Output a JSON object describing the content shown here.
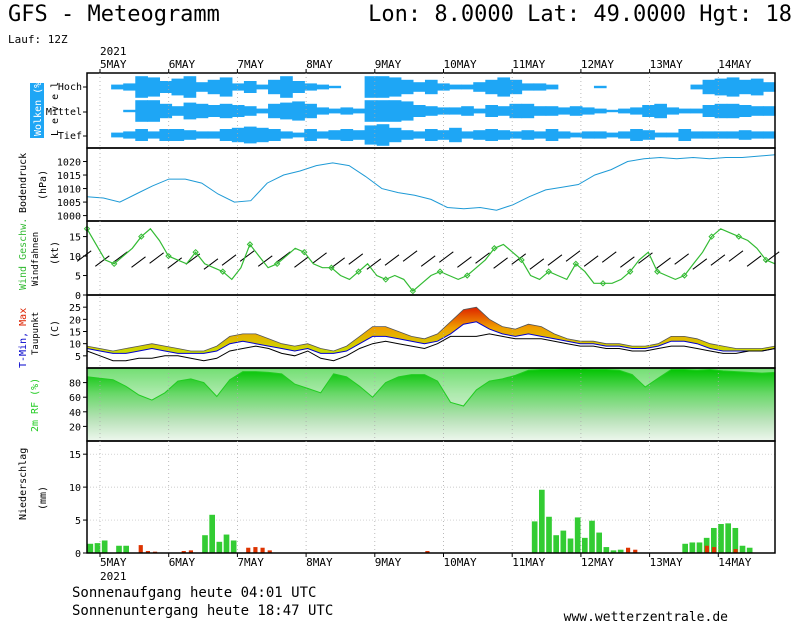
{
  "header": {
    "title": "GFS - Meteogramm",
    "coords": "Lon: 8.0000  Lat: 49.0000  Hgt: 18",
    "run": "Lauf: 12Z"
  },
  "footer": {
    "sunrise": "Sonnenaufgang heute 04:01 UTC",
    "sunset": "Sonnenuntergang heute 18:47 UTC",
    "site": "www.wetterzentrale.de"
  },
  "colors": {
    "cloud": "#1ea6f5",
    "pressure": "#1e9ad6",
    "wind_speed": "#33bb33",
    "tmin": "#0000cc",
    "tmax": "#dd2200",
    "dewpoint": "#000000",
    "rh": "#22cc22",
    "precip_rain": "#33cc33",
    "precip_other": "#dd3300"
  },
  "chart_data": [
    {
      "type": "heatmap",
      "name": "cloud",
      "panel_label_main": "Wolken (%)",
      "panel_label_sub": "L e v e l",
      "levels": [
        "Hoch",
        "Mittel",
        "Tief"
      ],
      "x_start_label": "5MAY",
      "year": "2021",
      "x_tick_labels": [
        "5MAY",
        "6MAY",
        "7MAY",
        "8MAY",
        "9MAY",
        "10MAY",
        "11MAY",
        "12MAY",
        "13MAY",
        "14MAY"
      ],
      "cover_high": [
        0,
        0,
        0.2,
        0.3,
        0.9,
        0.8,
        0.5,
        0.7,
        0.9,
        0.4,
        0.6,
        0.8,
        0.3,
        0.5,
        0.2,
        0.6,
        0.9,
        0.5,
        0.3,
        0.2,
        0.1,
        0,
        0,
        0.9,
        0.9,
        0.8,
        0.6,
        0.4,
        0.6,
        0.3,
        0.2,
        0.2,
        0.4,
        0.6,
        0.8,
        0.6,
        0.3,
        0.3,
        0.2,
        0,
        0,
        0,
        0.1,
        0,
        0,
        0,
        0,
        0,
        0,
        0,
        0.2,
        0.6,
        0.7,
        0.8,
        0.6,
        0.7,
        0.4
      ],
      "cover_mid": [
        0,
        0,
        0,
        0.1,
        0.9,
        0.9,
        0.6,
        0.4,
        0.7,
        0.6,
        0.5,
        0.6,
        0.5,
        0.4,
        0.2,
        0.6,
        0.7,
        0.8,
        0.6,
        0.3,
        0.2,
        0.3,
        0.2,
        0.9,
        0.9,
        0.9,
        0.8,
        0.5,
        0.4,
        0.3,
        0.3,
        0.4,
        0.2,
        0.5,
        0.4,
        0.6,
        0.6,
        0.4,
        0.4,
        0.3,
        0.4,
        0.3,
        0.2,
        0.1,
        0.2,
        0.3,
        0.5,
        0.6,
        0.3,
        0.2,
        0.2,
        0.5,
        0.6,
        0.6,
        0.5,
        0.4,
        0.4
      ],
      "cover_low": [
        0,
        0,
        0.2,
        0.3,
        0.5,
        0.3,
        0.5,
        0.5,
        0.4,
        0.3,
        0.3,
        0.5,
        0.6,
        0.7,
        0.6,
        0.5,
        0.3,
        0.2,
        0.5,
        0.3,
        0.4,
        0.5,
        0.4,
        0.8,
        0.9,
        0.6,
        0.4,
        0.3,
        0.5,
        0.4,
        0.6,
        0.3,
        0.4,
        0.5,
        0.4,
        0.3,
        0.4,
        0.3,
        0.5,
        0.3,
        0.2,
        0.3,
        0.3,
        0.2,
        0.3,
        0.5,
        0.4,
        0.2,
        0.2,
        0.5,
        0.3,
        0.3,
        0.3,
        0.3,
        0.4,
        0.3,
        0.3
      ]
    },
    {
      "type": "line",
      "name": "pressure",
      "ylabel": "Bodendruck",
      "unit": "(hPa)",
      "ylim": [
        998,
        1025
      ],
      "yticks": [
        1000,
        1005,
        1010,
        1015,
        1020
      ],
      "values": [
        1007,
        1006.5,
        1005,
        1008,
        1011,
        1013.5,
        1013.5,
        1012,
        1008,
        1005,
        1005.5,
        1012,
        1015,
        1016.5,
        1018.5,
        1019.5,
        1018.5,
        1014.5,
        1010,
        1008.5,
        1007.5,
        1006,
        1003,
        1002.5,
        1003,
        1002,
        1004,
        1007,
        1009.5,
        1010.5,
        1011.5,
        1015,
        1017,
        1020,
        1021,
        1021.5,
        1021,
        1021.5,
        1021,
        1021.5,
        1021.5,
        1022,
        1022.5
      ]
    },
    {
      "type": "line",
      "name": "wind",
      "ylabel": "Wind Geschw.",
      "ylabel2": "Windfahnen",
      "unit": "(kt)",
      "ylim": [
        0,
        19
      ],
      "yticks": [
        0,
        5,
        10,
        15
      ],
      "speed": [
        17,
        13,
        9,
        8,
        10,
        12,
        15,
        17,
        14,
        10,
        9,
        8,
        11,
        8,
        7,
        6,
        4,
        7,
        13,
        10,
        7,
        8,
        10,
        12,
        11,
        8,
        7,
        7,
        5,
        4,
        6,
        8,
        5,
        4,
        5,
        4,
        1,
        3,
        5,
        6,
        5,
        4,
        5,
        7,
        9,
        12,
        13,
        11,
        9,
        5,
        4,
        6,
        5,
        4,
        8,
        6,
        3,
        3,
        3,
        4,
        6,
        9,
        11,
        6,
        5,
        4,
        5,
        8,
        11,
        15,
        17,
        16,
        15,
        14,
        12,
        9,
        8
      ]
    },
    {
      "type": "area",
      "name": "temperature",
      "ylabel": "T-Min, Max",
      "ylabel2": "Taupunkt",
      "unit": "(C)",
      "ylim": [
        0,
        30
      ],
      "yticks": [
        5,
        10,
        15,
        20,
        25
      ],
      "series": [
        {
          "name": "T-Max",
          "values": [
            9,
            8,
            7,
            8,
            9,
            10,
            9,
            8,
            7,
            7,
            9,
            13,
            14,
            14,
            12,
            10,
            9,
            10,
            8,
            7,
            9,
            13,
            17,
            17,
            15,
            13,
            12,
            14,
            19,
            24,
            25,
            20,
            17,
            16,
            18,
            17,
            14,
            12,
            11,
            11,
            10,
            10,
            9,
            9,
            10,
            13,
            13,
            12,
            10,
            9,
            8,
            8,
            8,
            9
          ]
        },
        {
          "name": "T-Min",
          "values": [
            8,
            7,
            6,
            6,
            7,
            8,
            7,
            6,
            6,
            6,
            7,
            10,
            11,
            10,
            9,
            8,
            7,
            8,
            6,
            6,
            7,
            10,
            13,
            13,
            12,
            11,
            10,
            11,
            14,
            18,
            19,
            16,
            14,
            13,
            14,
            13,
            12,
            11,
            10,
            10,
            9,
            9,
            8,
            8,
            9,
            11,
            11,
            10,
            8,
            7,
            7,
            7,
            7,
            8
          ]
        },
        {
          "name": "Taupunkt",
          "values": [
            7,
            5,
            3,
            3,
            4,
            4,
            5,
            5,
            4,
            3,
            4,
            7,
            8,
            9,
            8,
            6,
            5,
            7,
            4,
            3,
            5,
            8,
            10,
            11,
            10,
            9,
            8,
            10,
            13,
            13,
            13,
            14,
            13,
            12,
            12,
            12,
            11,
            10,
            9,
            9,
            8,
            8,
            7,
            7,
            8,
            9,
            9,
            8,
            7,
            6,
            6,
            7,
            7,
            8
          ]
        }
      ]
    },
    {
      "type": "area",
      "name": "relative_humidity",
      "ylabel": "2m RF (%)",
      "ylim": [
        0,
        100
      ],
      "yticks": [
        20,
        40,
        60,
        80
      ],
      "values": [
        88,
        86,
        84,
        75,
        63,
        56,
        66,
        82,
        85,
        80,
        61,
        84,
        95,
        95,
        94,
        92,
        78,
        72,
        66,
        92,
        88,
        75,
        60,
        80,
        88,
        91,
        91,
        82,
        53,
        48,
        70,
        82,
        85,
        90,
        97,
        98,
        98,
        99,
        99,
        98,
        98,
        97,
        91,
        74,
        86,
        98,
        98,
        97,
        98,
        96,
        95,
        94,
        93,
        94
      ]
    },
    {
      "type": "bar",
      "name": "precipitation",
      "ylabel": "Niederschlag",
      "unit": "(mm)",
      "ylim": [
        0,
        17
      ],
      "yticks": [
        0,
        5,
        10,
        15
      ],
      "rain": [
        1.4,
        1.5,
        1.9,
        0,
        1.1,
        1.1,
        0,
        0,
        0,
        0,
        0,
        0,
        0,
        0,
        0,
        0,
        2.7,
        5.8,
        1.7,
        2.8,
        1.9,
        0,
        0,
        0,
        0,
        0,
        0,
        0,
        0,
        0,
        0,
        0,
        0,
        0,
        0,
        0,
        0,
        0,
        0,
        0,
        0,
        0,
        0,
        0,
        0,
        0,
        0,
        0,
        0,
        0,
        0,
        0,
        0,
        0,
        0,
        0,
        0,
        0,
        0,
        0,
        0,
        0,
        4.8,
        9.6,
        5.5,
        2.7,
        3.4,
        2.2,
        5.4,
        2.3,
        4.9,
        3.1,
        0.9,
        0.4,
        0.5,
        0,
        0,
        0,
        0,
        0,
        0,
        0,
        0,
        1.4,
        1.6,
        1.6,
        2.3,
        3.8,
        4.4,
        4.5,
        3.8,
        1.1,
        0.8,
        0,
        0,
        0
      ],
      "other": [
        0,
        0,
        0,
        0,
        0,
        0,
        0,
        1.2,
        0.3,
        0.2,
        0,
        0,
        0,
        0.3,
        0.4,
        0,
        0,
        0,
        0,
        0,
        0,
        0,
        0.8,
        0.9,
        0.8,
        0.4,
        0,
        0,
        0,
        0,
        0,
        0,
        0,
        0,
        0,
        0,
        0,
        0,
        0,
        0,
        0,
        0,
        0,
        0,
        0,
        0,
        0,
        0.3,
        0,
        0,
        0,
        0,
        0,
        0,
        0,
        0,
        0,
        0,
        0,
        0,
        0,
        0,
        0,
        0,
        0,
        0,
        0,
        0,
        0,
        0,
        0,
        0,
        0,
        0,
        0,
        0.8,
        0.5,
        0,
        0,
        0,
        0,
        0,
        0,
        0,
        0,
        0,
        1.1,
        0.9,
        0,
        0,
        0.6,
        0,
        0,
        0,
        0,
        0,
        0
      ]
    }
  ]
}
